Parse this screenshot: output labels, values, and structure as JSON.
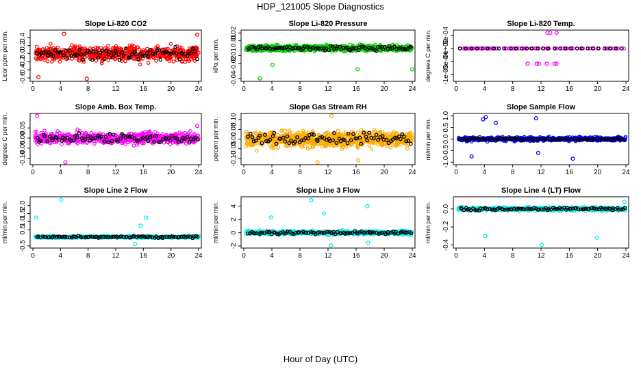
{
  "figure": {
    "title": "HDP_121005  Slope Diagnostics",
    "xlabel": "Hour of Day (UTC)"
  },
  "chart_data": [
    {
      "type": "scatter",
      "title": "Slope Li-820 CO2",
      "ylabel": "Licor ppm per min.",
      "color": "#ff0000",
      "xlim": [
        0,
        24
      ],
      "ylim": [
        -0.65,
        0.55
      ],
      "yticks": [
        "-0.6",
        "-0.4",
        "-0.2",
        "0.0",
        "0.2",
        "0.4"
      ],
      "ytick_values": [
        -0.6,
        -0.4,
        -0.2,
        0.0,
        0.2,
        0.4
      ],
      "xticks": [
        0,
        4,
        8,
        12,
        16,
        20,
        24
      ],
      "spread": 0.28,
      "sample_count": 600,
      "black_count": 80,
      "outliers": [
        {
          "x": 0.8,
          "y": -0.58
        },
        {
          "x": 4.5,
          "y": 0.49
        },
        {
          "x": 7.8,
          "y": -0.62
        },
        {
          "x": 23.8,
          "y": 0.47
        }
      ]
    },
    {
      "type": "scatter",
      "title": "Slope Li-820 Pressure",
      "ylabel": "kPa per min.",
      "color": "#00cc00",
      "xlim": [
        0,
        24
      ],
      "ylim": [
        -0.042,
        0.022
      ],
      "yticks": [
        "-0.04",
        "-0.02",
        "-0.01",
        "0.01",
        "0.02"
      ],
      "ytick_values": [
        -0.04,
        -0.02,
        -0.01,
        0.01,
        0.02
      ],
      "xticks": [
        0,
        4,
        8,
        12,
        16,
        20,
        24
      ],
      "spread": 0.006,
      "sample_count": 700,
      "black_count": 90,
      "outliers": [
        {
          "x": 2.3,
          "y": -0.04
        },
        {
          "x": 16.2,
          "y": -0.028
        },
        {
          "x": 24,
          "y": -0.028
        },
        {
          "x": 4.1,
          "y": -0.022
        }
      ]
    },
    {
      "type": "scatter",
      "title": "Slope Li-820 Temp.",
      "ylabel": "degrees C per min.",
      "color": "#ff00ff",
      "xlim": [
        0,
        24
      ],
      "ylim": [
        -0.0012,
        0.00065
      ],
      "yticks": [
        "-1e-03",
        "-5e-04",
        "0e+00",
        "5e-04"
      ],
      "ytick_values": [
        -0.001,
        -0.0005,
        0.0,
        0.0005
      ],
      "xticks": [
        0,
        4,
        8,
        12,
        16,
        20,
        24
      ],
      "spread": 0.0,
      "sample_count": 90,
      "black_count": 30,
      "outliers": [
        {
          "x": 12.9,
          "y": 0.0006
        },
        {
          "x": 13.3,
          "y": 0.0006
        },
        {
          "x": 14.2,
          "y": 0.0006
        },
        {
          "x": 10.1,
          "y": -0.00058
        },
        {
          "x": 11.4,
          "y": -0.00058
        },
        {
          "x": 11.7,
          "y": -0.00058
        },
        {
          "x": 12.8,
          "y": -0.00058
        },
        {
          "x": 13.9,
          "y": -0.00058
        },
        {
          "x": 14.2,
          "y": -0.00058
        }
      ]
    },
    {
      "type": "scatter",
      "title": "Slope Amb. Box Temp.",
      "ylabel": "degrees C per min.",
      "color": "#ff00ff",
      "xlim": [
        0,
        24
      ],
      "ylim": [
        -0.125,
        0.115
      ],
      "yticks": [
        "-0.10",
        "-0.05",
        "0.00",
        "0.05"
      ],
      "ytick_values": [
        -0.1,
        -0.05,
        0.0,
        0.05
      ],
      "xticks": [
        0,
        4,
        8,
        12,
        16,
        20,
        24
      ],
      "spread": 0.045,
      "sample_count": 600,
      "black_count": 80,
      "outliers": [
        {
          "x": 0.6,
          "y": 0.11
        },
        {
          "x": 4.7,
          "y": -0.12
        },
        {
          "x": 23.8,
          "y": 0.06
        }
      ]
    },
    {
      "type": "scatter",
      "title": "Slope Gas Stream RH",
      "ylabel": "percent per min.",
      "color": "#ffaa00",
      "xlim": [
        0,
        24
      ],
      "ylim": [
        -0.125,
        0.125
      ],
      "yticks": [
        "-0.10",
        "-0.05",
        "0.00",
        "0.05",
        "0.10"
      ],
      "ytick_values": [
        -0.1,
        -0.05,
        0.0,
        0.05,
        0.1
      ],
      "xticks": [
        0,
        4,
        8,
        12,
        16,
        20,
        24
      ],
      "spread": 0.06,
      "sample_count": 800,
      "black_count": 80,
      "outliers": [
        {
          "x": 12.5,
          "y": 0.12
        },
        {
          "x": 10.5,
          "y": -0.12
        },
        {
          "x": 16.3,
          "y": -0.11
        }
      ]
    },
    {
      "type": "scatter",
      "title": "Slope Sample Flow",
      "ylabel": "ml/min per min.",
      "color": "#0000ff",
      "xlim": [
        0,
        24
      ],
      "ylim": [
        -1.05,
        1.05
      ],
      "yticks": [
        "-1.0",
        "-0.5",
        "0.0",
        "0.5",
        "1.0"
      ],
      "ytick_values": [
        -1.0,
        -0.5,
        0.0,
        0.5,
        1.0
      ],
      "xticks": [
        0,
        4,
        8,
        12,
        16,
        20,
        24
      ],
      "spread": 0.12,
      "sample_count": 600,
      "black_count": 80,
      "outliers": [
        {
          "x": 3.8,
          "y": 0.85
        },
        {
          "x": 4.2,
          "y": 0.95
        },
        {
          "x": 11.3,
          "y": 0.9
        },
        {
          "x": 11.6,
          "y": -0.6
        },
        {
          "x": 2.2,
          "y": -0.75
        },
        {
          "x": 16.5,
          "y": -0.85
        },
        {
          "x": 5.6,
          "y": 0.7
        }
      ]
    },
    {
      "type": "scatter",
      "title": "Slope Line 2 Flow",
      "ylabel": "ml/min per min.",
      "color": "#00eeee",
      "xlim": [
        0,
        24
      ],
      "ylim": [
        -0.55,
        2.45
      ],
      "yticks": [
        "-0.5",
        "0.5",
        "1.0",
        "1.5",
        "2.0"
      ],
      "ytick_values": [
        -0.5,
        0.5,
        1.0,
        1.5,
        2.0
      ],
      "xticks": [
        0,
        4,
        8,
        12,
        16,
        20,
        24
      ],
      "spread": 0.1,
      "base": 0.05,
      "sample_count": 500,
      "black_count": 90,
      "outliers": [
        {
          "x": 0.5,
          "y": 1.25
        },
        {
          "x": 4.1,
          "y": 2.35
        },
        {
          "x": 16.4,
          "y": 1.25
        },
        {
          "x": 15.6,
          "y": 0.75
        },
        {
          "x": 14.8,
          "y": -0.4
        }
      ]
    },
    {
      "type": "scatter",
      "title": "Slope Line 3 Flow",
      "ylabel": "ml/min per min.",
      "color": "#00eeee",
      "xlim": [
        0,
        24
      ],
      "ylim": [
        -2.1,
        5.2
      ],
      "yticks": [
        "-2",
        "0",
        "2",
        "4"
      ],
      "ytick_values": [
        -2,
        0,
        2,
        4
      ],
      "xticks": [
        0,
        4,
        8,
        12,
        16,
        20,
        24
      ],
      "spread": 0.45,
      "sample_count": 500,
      "black_count": 90,
      "outliers": [
        {
          "x": 9.6,
          "y": 4.9
        },
        {
          "x": 17.6,
          "y": 4.0
        },
        {
          "x": 11.4,
          "y": 2.9
        },
        {
          "x": 3.9,
          "y": 2.3
        },
        {
          "x": 12.4,
          "y": -1.9
        },
        {
          "x": 17.7,
          "y": -1.5
        }
      ]
    },
    {
      "type": "scatter",
      "title": "Slope Line 4 (LT) Flow",
      "ylabel": "ml/min per min.",
      "color": "#00eeee",
      "xlim": [
        0,
        24
      ],
      "ylim": [
        -0.42,
        0.12
      ],
      "yticks": [
        "-0.4",
        "-0.2",
        "0.0"
      ],
      "ytick_values": [
        -0.4,
        -0.2,
        0.0
      ],
      "xticks": [
        0,
        4,
        8,
        12,
        16,
        20,
        24
      ],
      "spread": 0.03,
      "sample_count": 500,
      "black_count": 90,
      "outliers": [
        {
          "x": 4.1,
          "y": -0.3
        },
        {
          "x": 12.1,
          "y": -0.4
        },
        {
          "x": 19.9,
          "y": -0.32
        },
        {
          "x": 23.8,
          "y": 0.08
        }
      ]
    }
  ]
}
